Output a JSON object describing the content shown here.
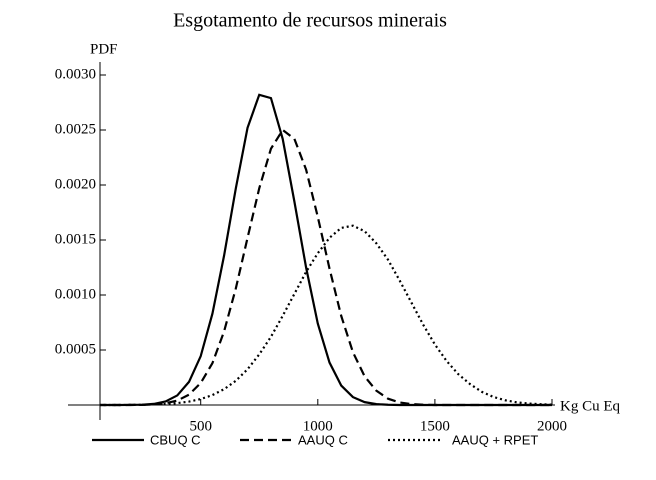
{
  "chart_data": {
    "type": "line",
    "title": "Esgotamento de recursos minerais",
    "ylabel": "PDF",
    "xlabel": "Kg Cu Eq",
    "x": [
      0,
      50,
      100,
      150,
      200,
      250,
      300,
      350,
      400,
      450,
      500,
      550,
      600,
      650,
      700,
      750,
      800,
      850,
      900,
      950,
      1000,
      1050,
      1100,
      1150,
      1200,
      1250,
      1300,
      1350,
      1400,
      1450,
      1500,
      1550,
      1600,
      1650,
      1700,
      1750,
      1800,
      1850,
      1900,
      1950,
      2000
    ],
    "series": [
      {
        "name": "CBUQ C",
        "color": "#000000",
        "dash": "solid",
        "values": [
          0,
          0,
          0,
          0,
          1e-06,
          3e-06,
          1e-05,
          3.2e-05,
          8.7e-05,
          0.00021,
          0.000444,
          0.00083,
          0.00136,
          0.00197,
          0.00252,
          0.00282,
          0.00279,
          0.00242,
          0.00185,
          0.00125,
          0.00074,
          0.000386,
          0.000177,
          7.2e-05,
          2.6e-05,
          8e-06,
          2e-06,
          0,
          0,
          0,
          0,
          0,
          0,
          0,
          0,
          0,
          0,
          0,
          0,
          0,
          0
        ]
      },
      {
        "name": "AAUQ C",
        "color": "#000000",
        "dash": "dashed",
        "values": [
          0,
          0,
          0,
          0,
          0,
          1e-06,
          5e-06,
          1.6e-05,
          4e-05,
          9.4e-05,
          0.0002,
          0.00038,
          0.00067,
          0.00106,
          0.00152,
          0.00197,
          0.00233,
          0.0025,
          0.00242,
          0.00214,
          0.00171,
          0.00124,
          0.00081,
          0.00048,
          0.00026,
          0.00013,
          5.7e-05,
          2.3e-05,
          8e-06,
          3e-06,
          0,
          0,
          0,
          0,
          0,
          0,
          0,
          0,
          0,
          0,
          0
        ]
      },
      {
        "name": "AAUQ + RPET",
        "color": "#000000",
        "dash": "dotted",
        "values": [
          0,
          0,
          0,
          0,
          1e-06,
          2e-06,
          5e-06,
          9e-06,
          1.7e-05,
          3.1e-05,
          5.4e-05,
          9e-05,
          0.000144,
          0.00022,
          0.000325,
          0.00046,
          0.00062,
          0.00081,
          0.00101,
          0.00121,
          0.00138,
          0.00152,
          0.00161,
          0.00163,
          0.00158,
          0.00147,
          0.00132,
          0.00113,
          0.00093,
          0.00073,
          0.00055,
          0.0004,
          0.00028,
          0.00019,
          0.00012,
          7.3e-05,
          4.3e-05,
          2.4e-05,
          1.3e-05,
          7e-06,
          3e-06
        ]
      }
    ],
    "xlim": [
      70,
      2000
    ],
    "ylim": [
      0,
      0.003
    ],
    "xticks": [
      500,
      1000,
      1500,
      2000
    ],
    "yticks": [
      {
        "value": 0.0005,
        "label": "0.0005"
      },
      {
        "value": 0.001,
        "label": "0.0010"
      },
      {
        "value": 0.0015,
        "label": "0.0015"
      },
      {
        "value": 0.002,
        "label": "0.0020"
      },
      {
        "value": 0.0025,
        "label": "0.0025"
      },
      {
        "value": 0.003,
        "label": "0.0030"
      }
    ]
  }
}
